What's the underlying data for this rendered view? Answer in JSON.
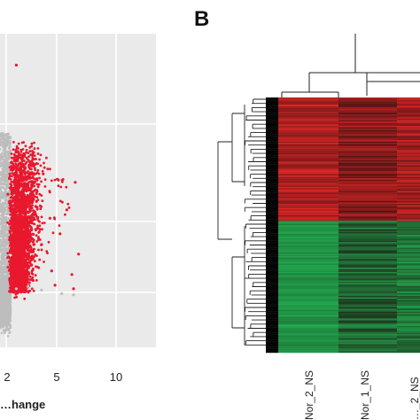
{
  "figure": {
    "panel_b_letter": "B"
  },
  "chart_data": [
    {
      "type": "scatter",
      "title": "",
      "xlabel": "…hange",
      "ylabel": "",
      "x_tick_labels": [
        "2",
        "5",
        "10"
      ],
      "x_ticks": [
        2,
        5,
        10
      ],
      "xlim": [
        -2.3,
        13
      ],
      "grid": true,
      "background_color": "#eaeaea",
      "highlight_color": "#e8182e",
      "base_color": "#bdbdbd",
      "series": [
        {
          "color": "#e8182e",
          "points": [
            [
              2.6,
              19.0
            ],
            [
              4.2,
              9.9
            ],
            [
              5.1,
              9.4
            ],
            [
              6.1,
              9.2
            ],
            [
              3.2,
              9.0
            ],
            [
              2.9,
              8.4
            ],
            [
              2.1,
              8.2
            ],
            [
              3.8,
              7.6
            ],
            [
              5.6,
              6.9
            ],
            [
              4.6,
              6.2
            ],
            [
              2.4,
              5.8
            ],
            [
              3.5,
              5.3
            ],
            [
              5.2,
              4.9
            ],
            [
              2.2,
              4.4
            ],
            [
              4.1,
              4.0
            ],
            [
              6.3,
              3.2
            ],
            [
              3.0,
              2.8
            ],
            [
              2.5,
              2.0
            ],
            [
              4.7,
              1.8
            ],
            [
              5.9,
              1.5
            ],
            [
              3.6,
              1.0
            ],
            [
              2.3,
              0.8
            ],
            [
              4.9,
              0.6
            ],
            [
              6.0,
              0.3
            ]
          ]
        },
        {
          "color": "#bdbdbd",
          "points": [
            [
              1.2,
              1.1
            ],
            [
              0.8,
              0.7
            ],
            [
              1.6,
              0.4
            ],
            [
              1.9,
              0.2
            ],
            [
              2.6,
              0.3
            ],
            [
              3.3,
              0.5
            ],
            [
              4.1,
              0.2
            ],
            [
              5.3,
              -0.1
            ],
            [
              6.0,
              -0.2
            ],
            [
              1.0,
              6.4
            ],
            [
              1.5,
              8.6
            ],
            [
              0.4,
              3.1
            ]
          ]
        }
      ]
    },
    {
      "type": "heatmap",
      "title": "",
      "columns": [
        "Nor_2_NS",
        "Nor_1_NS",
        "…_2_NS"
      ],
      "up_color": "#dd2424",
      "down_color": "#1fa74c",
      "dark_color": "#1c0c0c"
    }
  ]
}
